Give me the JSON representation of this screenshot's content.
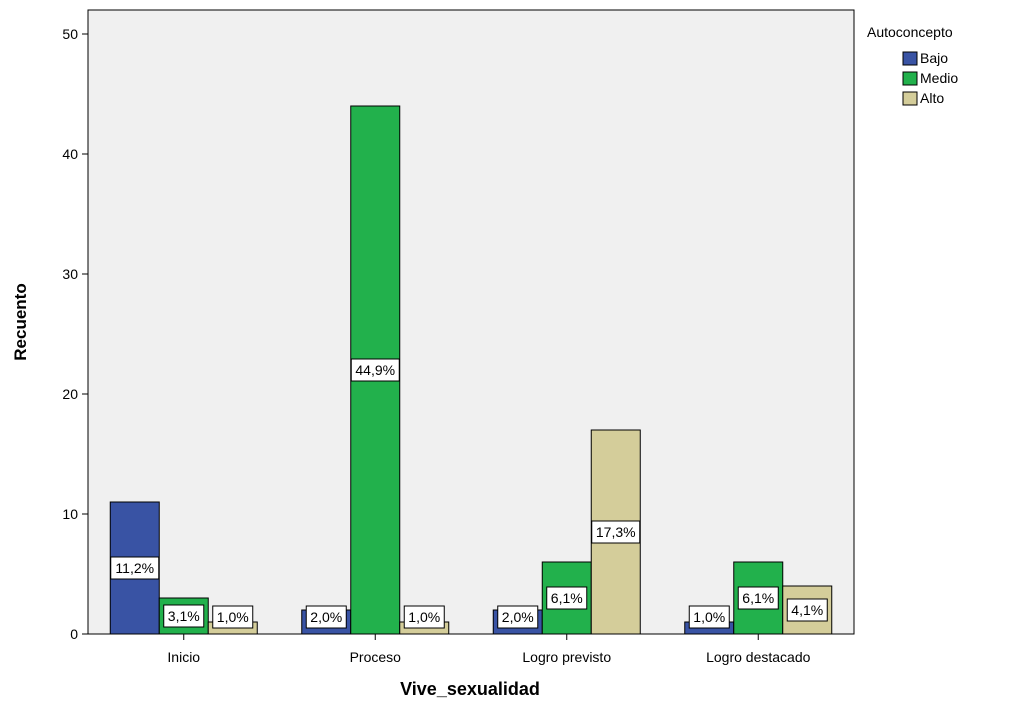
{
  "chart_data": {
    "type": "bar",
    "xlabel": "Vive_sexualidad",
    "ylabel": "Recuento",
    "ylim": [
      0,
      52
    ],
    "yticks": [
      0,
      10,
      20,
      30,
      40,
      50
    ],
    "categories": [
      "Inicio",
      "Proceso",
      "Logro previsto",
      "Logro destacado"
    ],
    "legend": {
      "title": "Autoconcepto",
      "placement": "top-right"
    },
    "grid": false,
    "series": [
      {
        "name": "Bajo",
        "color": "#3953a4",
        "values": [
          11,
          2,
          2,
          1
        ],
        "labels": [
          "11,2%",
          "2,0%",
          "2,0%",
          "1,0%"
        ]
      },
      {
        "name": "Medio",
        "color": "#22b14c",
        "values": [
          3,
          44,
          6,
          6
        ],
        "labels": [
          "3,1%",
          "44,9%",
          "6,1%",
          "6,1%"
        ]
      },
      {
        "name": "Alto",
        "color": "#d4cd9a",
        "values": [
          1,
          1,
          17,
          4
        ],
        "labels": [
          "1,0%",
          "1,0%",
          "17,3%",
          "4,1%"
        ]
      }
    ]
  }
}
